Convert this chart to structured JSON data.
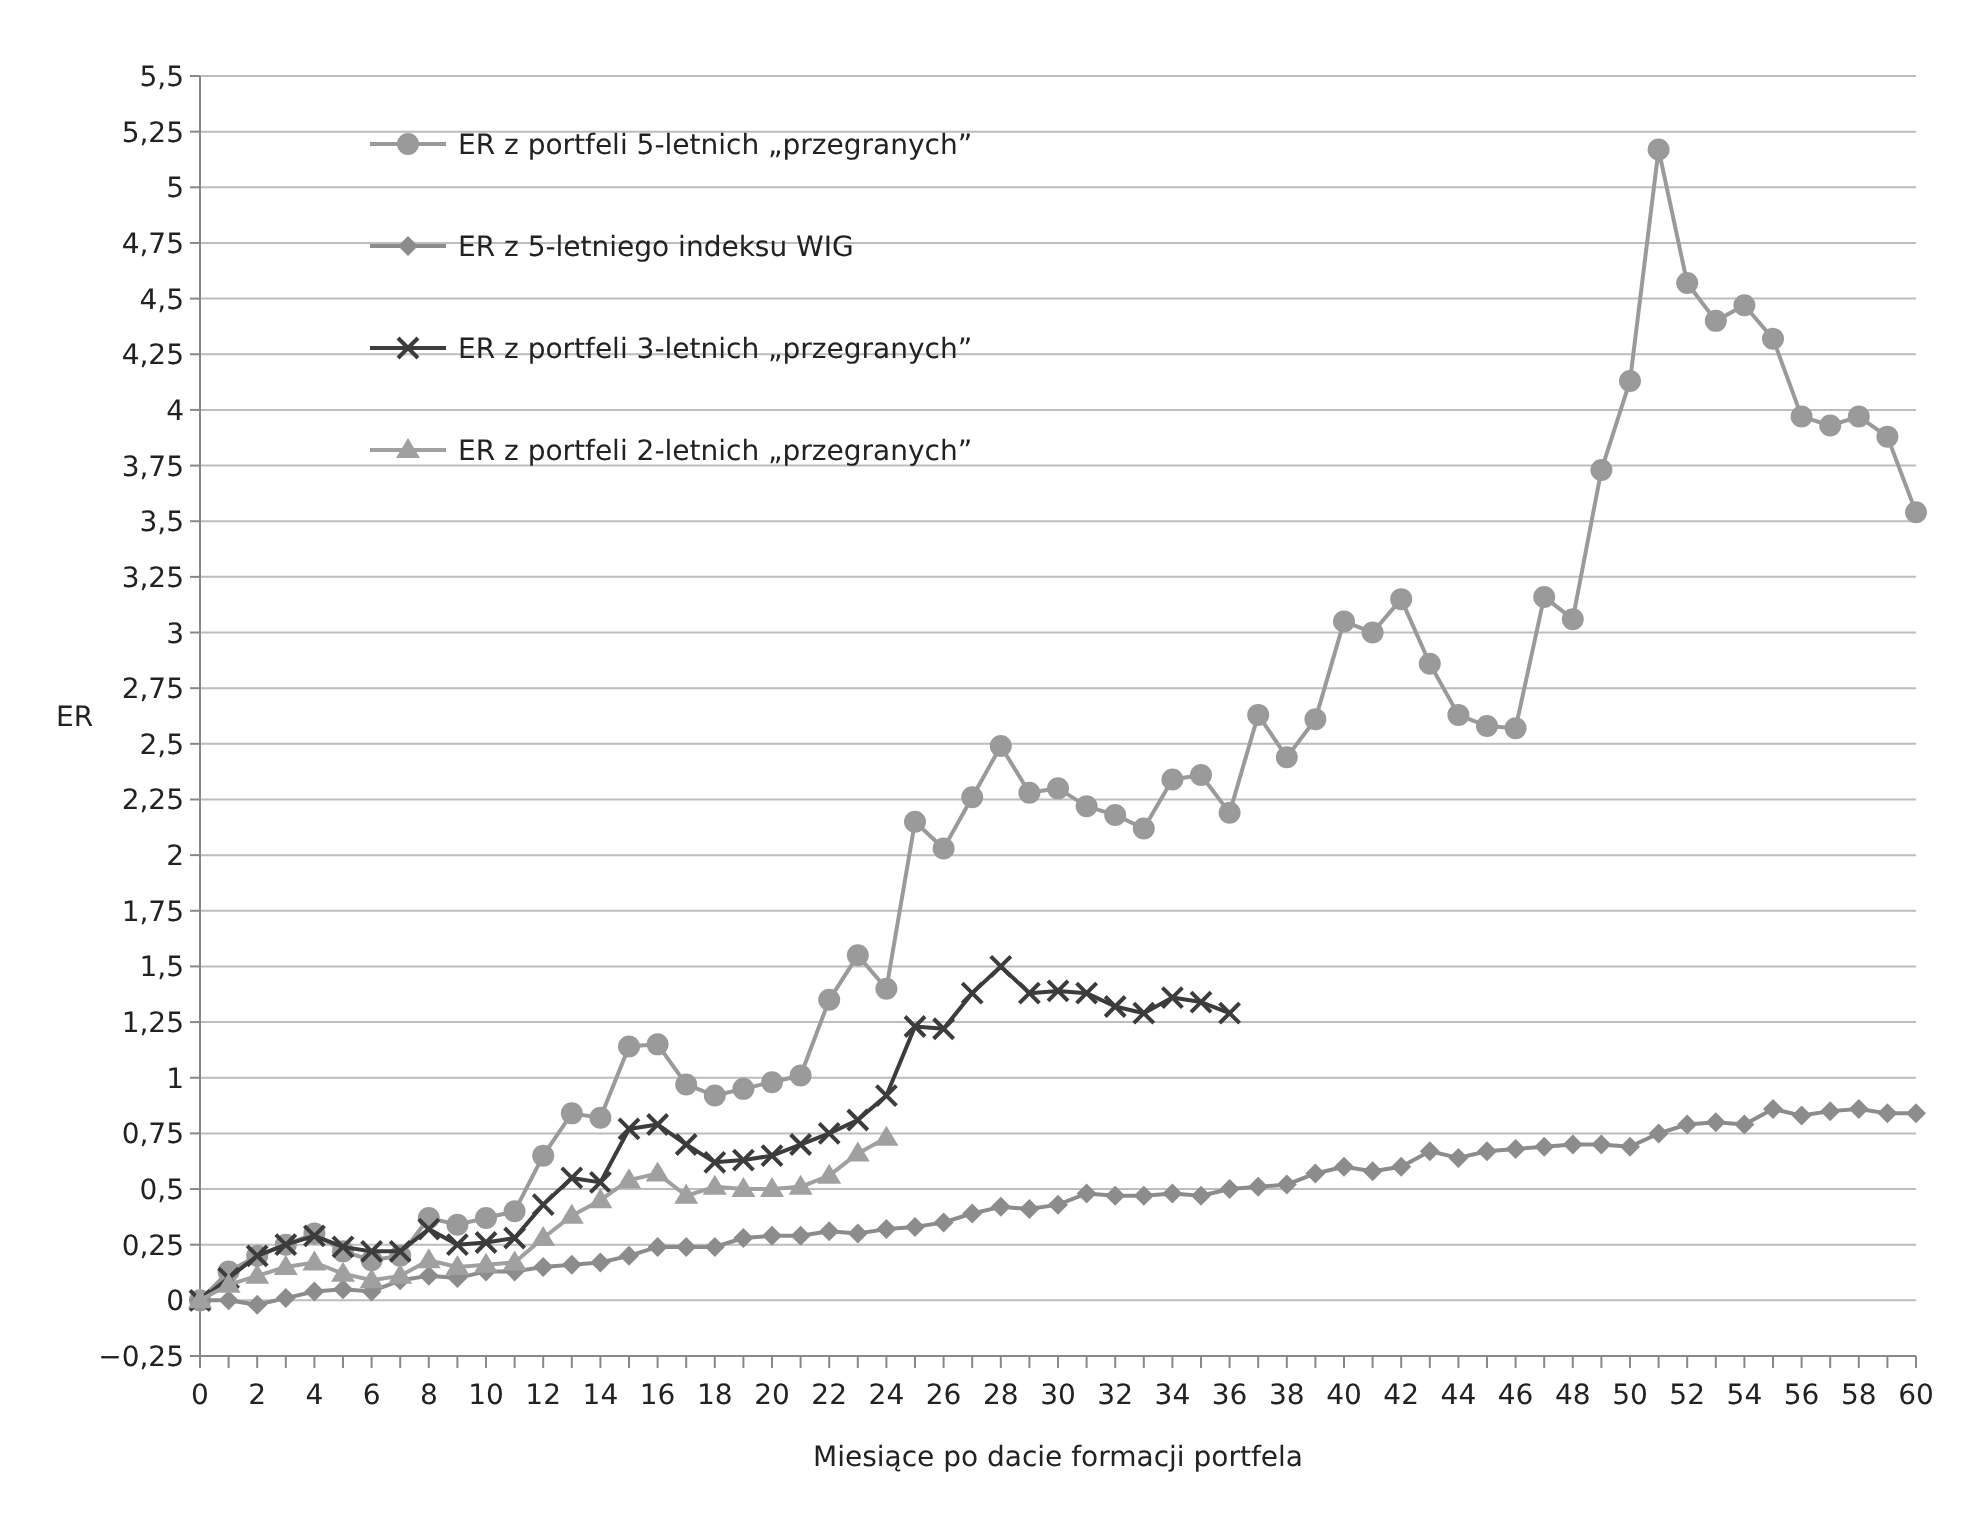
{
  "chart_data": {
    "type": "line",
    "xlabel": "Miesiące po dacie formacji portfela",
    "ylabel": "ER",
    "xlim": [
      0,
      60
    ],
    "ylim": [
      -0.25,
      5.5
    ],
    "xticks": [
      0,
      {
        "value": 1,
        "label": null
      },
      2,
      {
        "value": 3,
        "label": null
      },
      4,
      {
        "value": 5,
        "label": null
      },
      6,
      {
        "value": 7,
        "label": null
      },
      8,
      {
        "value": 9,
        "label": null
      },
      10,
      {
        "value": 11,
        "label": null
      },
      12,
      {
        "value": 13,
        "label": null
      },
      14,
      {
        "value": 15,
        "label": null
      },
      16,
      {
        "value": 17,
        "label": null
      },
      18,
      {
        "value": 19,
        "label": null
      },
      20,
      {
        "value": 21,
        "label": null
      },
      22,
      {
        "value": 23,
        "label": null
      },
      24,
      {
        "value": 25,
        "label": null
      },
      26,
      {
        "value": 27,
        "label": null
      },
      28,
      {
        "value": 29,
        "label": null
      },
      30,
      {
        "value": 31,
        "label": null
      },
      32,
      {
        "value": 33,
        "label": null
      },
      34,
      {
        "value": 35,
        "label": null
      },
      36,
      {
        "value": 37,
        "label": null
      },
      38,
      {
        "value": 39,
        "label": null
      },
      40,
      {
        "value": 41,
        "label": null
      },
      42,
      {
        "value": 43,
        "label": null
      },
      44,
      {
        "value": 45,
        "label": null
      },
      46,
      {
        "value": 47,
        "label": null
      },
      48,
      {
        "value": 49,
        "label": null
      },
      50,
      {
        "value": 51,
        "label": null
      },
      52,
      {
        "value": 53,
        "label": null
      },
      54,
      {
        "value": 55,
        "label": null
      },
      56,
      {
        "value": 57,
        "label": null
      },
      58,
      {
        "value": 59,
        "label": null
      },
      60
    ],
    "yticks": [
      {
        "value": -0.25,
        "label": "−0,25"
      },
      0,
      {
        "value": 0.25,
        "label": "0,25"
      },
      {
        "value": 0.5,
        "label": "0,5"
      },
      {
        "value": 0.75,
        "label": "0,75"
      },
      1,
      {
        "value": 1.25,
        "label": "1,25"
      },
      {
        "value": 1.5,
        "label": "1,5"
      },
      {
        "value": 1.75,
        "label": "1,75"
      },
      2,
      {
        "value": 2.25,
        "label": "2,25"
      },
      {
        "value": 2.5,
        "label": "2,5"
      },
      {
        "value": 2.75,
        "label": "2,75"
      },
      3,
      {
        "value": 3.25,
        "label": "3,25"
      },
      {
        "value": 3.5,
        "label": "3,5"
      },
      {
        "value": 3.75,
        "label": "3,75"
      },
      4,
      {
        "value": 4.25,
        "label": "4,25"
      },
      {
        "value": 4.5,
        "label": "4,5"
      },
      {
        "value": 4.75,
        "label": "4,75"
      },
      5,
      {
        "value": 5.25,
        "label": "5,25"
      },
      {
        "value": 5.5,
        "label": "5,5"
      }
    ],
    "grid": "y",
    "legend": "top left",
    "x": [
      0,
      1,
      2,
      3,
      4,
      5,
      6,
      7,
      8,
      9,
      10,
      11,
      12,
      13,
      14,
      15,
      16,
      17,
      18,
      19,
      20,
      21,
      22,
      23,
      24,
      25,
      26,
      27,
      28,
      29,
      30,
      31,
      32,
      33,
      34,
      35,
      36,
      37,
      38,
      39,
      40,
      41,
      42,
      43,
      44,
      45,
      46,
      47,
      48,
      49,
      50,
      51,
      52,
      53,
      54,
      55,
      56,
      57,
      58,
      59,
      60
    ],
    "series": [
      {
        "name": "ER z portfeli 5-letnich „przegranych”",
        "color": "#9a9a9a",
        "marker": "circle",
        "values": [
          0,
          0.13,
          0.2,
          0.25,
          0.3,
          0.22,
          0.18,
          0.2,
          0.37,
          0.34,
          0.37,
          0.4,
          0.65,
          0.84,
          0.82,
          1.14,
          1.15,
          0.97,
          0.92,
          0.95,
          0.98,
          1.01,
          1.35,
          1.55,
          1.4,
          2.15,
          2.03,
          2.26,
          2.49,
          2.28,
          2.3,
          2.22,
          2.18,
          2.12,
          2.34,
          2.36,
          2.19,
          2.63,
          2.44,
          2.61,
          3.05,
          3.0,
          3.15,
          2.86,
          2.63,
          2.58,
          2.57,
          3.16,
          3.06,
          3.73,
          4.13,
          5.17,
          4.57,
          4.4,
          4.47,
          4.32,
          3.97,
          3.93,
          3.97,
          3.88,
          3.54
        ]
      },
      {
        "name": "ER z 5-letniego indeksu WIG",
        "color": "#8c8c8c",
        "marker": "diamond",
        "values": [
          0,
          0,
          -0.02,
          0.01,
          0.04,
          0.05,
          0.04,
          0.09,
          0.11,
          0.1,
          0.13,
          0.13,
          0.15,
          0.16,
          0.17,
          0.2,
          0.24,
          0.24,
          0.24,
          0.28,
          0.29,
          0.29,
          0.31,
          0.3,
          0.32,
          0.33,
          0.35,
          0.39,
          0.42,
          0.41,
          0.43,
          0.48,
          0.47,
          0.47,
          0.48,
          0.47,
          0.5,
          0.51,
          0.52,
          0.57,
          0.6,
          0.58,
          0.6,
          0.67,
          0.64,
          0.67,
          0.68,
          0.69,
          0.7,
          0.7,
          0.69,
          0.75,
          0.79,
          0.8,
          0.79,
          0.86,
          0.83,
          0.85,
          0.86,
          0.84,
          0.84
        ]
      },
      {
        "name": "ER z portfeli 3-letnich „przegranych”",
        "color": "#3c3c3c",
        "marker": "cross",
        "x": [
          0,
          1,
          2,
          3,
          4,
          5,
          6,
          7,
          8,
          9,
          10,
          11,
          12,
          13,
          14,
          15,
          16,
          17,
          18,
          19,
          20,
          21,
          22,
          23,
          24,
          25,
          26,
          27,
          28,
          29,
          30,
          31,
          32,
          33,
          34,
          35,
          36
        ],
        "values": [
          0,
          0.1,
          0.2,
          0.25,
          0.29,
          0.24,
          0.22,
          0.22,
          0.32,
          0.25,
          0.26,
          0.28,
          0.43,
          0.55,
          0.53,
          0.77,
          0.79,
          0.7,
          0.62,
          0.63,
          0.65,
          0.7,
          0.75,
          0.81,
          0.92,
          1.23,
          1.22,
          1.38,
          1.5,
          1.38,
          1.39,
          1.38,
          1.32,
          1.29,
          1.36,
          1.34,
          1.29
        ]
      },
      {
        "name": "ER z portfeli 2-letnich „przegranych”",
        "color": "#a0a0a0",
        "marker": "triangle",
        "x": [
          0,
          1,
          2,
          3,
          4,
          5,
          6,
          7,
          8,
          9,
          10,
          11,
          12,
          13,
          14,
          15,
          16,
          17,
          18,
          19,
          20,
          21,
          22,
          23,
          24
        ],
        "values": [
          0,
          0.07,
          0.11,
          0.15,
          0.17,
          0.12,
          0.09,
          0.11,
          0.18,
          0.15,
          0.16,
          0.17,
          0.28,
          0.38,
          0.45,
          0.54,
          0.57,
          0.47,
          0.51,
          0.5,
          0.5,
          0.51,
          0.56,
          0.66,
          0.73
        ]
      }
    ]
  }
}
